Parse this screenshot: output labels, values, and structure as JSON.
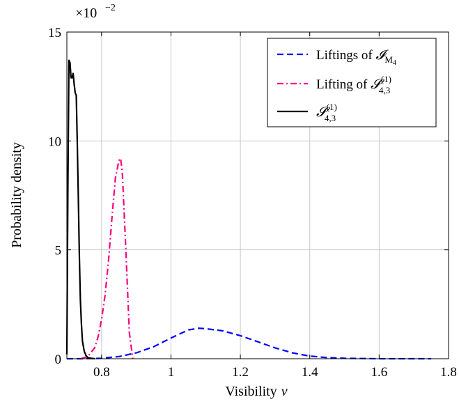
{
  "chart_data": {
    "type": "line",
    "xlabel": "Visibility",
    "xlabel_var": "v",
    "ylabel": "Probability density",
    "y_multiplier": "×10",
    "y_multiplier_exp": "−2",
    "xlim": [
      0.7,
      1.8
    ],
    "ylim": [
      0,
      15
    ],
    "x_ticks": [
      0.8,
      1,
      1.2,
      1.4,
      1.6,
      1.8
    ],
    "x_tick_labels": [
      "0.8",
      "1",
      "1.2",
      "1.4",
      "1.6",
      "1.8"
    ],
    "y_ticks": [
      0,
      5,
      10,
      15
    ],
    "y_tick_labels": [
      "0",
      "5",
      "10",
      "15"
    ],
    "grid": true,
    "legend_position": "top-right",
    "series": [
      {
        "name": "Liftings of I_M4",
        "legend_text": "Liftings of",
        "legend_math": "𝓘",
        "legend_sub": "M",
        "legend_subsub": "4",
        "color": "#0000ff",
        "dash": "dashed",
        "x": [
          0.7,
          0.75,
          0.8,
          0.85,
          0.9,
          0.95,
          1.0,
          1.05,
          1.08,
          1.1,
          1.15,
          1.2,
          1.25,
          1.3,
          1.35,
          1.4,
          1.45,
          1.5,
          1.6,
          1.75
        ],
        "y": [
          0,
          0,
          0.02,
          0.1,
          0.27,
          0.55,
          0.95,
          1.32,
          1.4,
          1.38,
          1.28,
          1.06,
          0.78,
          0.5,
          0.27,
          0.12,
          0.05,
          0.02,
          0,
          0
        ]
      },
      {
        "name": "Lifting of S_{4,3}^(1)",
        "legend_text": "Lifting of",
        "legend_math": "𝓢",
        "legend_sub": "4,3",
        "legend_sup": "(1)",
        "color": "#ff0080",
        "dash": "dashdot",
        "x": [
          0.74,
          0.76,
          0.78,
          0.79,
          0.8,
          0.81,
          0.82,
          0.83,
          0.84,
          0.85,
          0.855,
          0.86,
          0.87,
          0.88,
          0.89
        ],
        "y": [
          0,
          0.1,
          0.5,
          1.0,
          1.8,
          2.9,
          4.5,
          6.5,
          8.3,
          9.1,
          9.2,
          8.5,
          5.0,
          1.2,
          0
        ]
      },
      {
        "name": "S_{4,3}^(1)",
        "legend_text": "",
        "legend_math": "𝓢",
        "legend_sub": "4,3",
        "legend_sup": "(1)",
        "color": "#000000",
        "dash": "solid",
        "x": [
          0.7,
          0.703,
          0.706,
          0.709,
          0.712,
          0.715,
          0.718,
          0.721,
          0.724,
          0.727,
          0.73,
          0.733,
          0.736,
          0.739,
          0.742,
          0.745,
          0.75,
          0.755,
          0.76,
          0.77,
          0.78
        ],
        "y": [
          0.2,
          8.0,
          13.7,
          13.6,
          12.9,
          12.9,
          13.1,
          12.6,
          12.2,
          12.1,
          10.0,
          7.5,
          4.8,
          2.7,
          1.6,
          0.8,
          0.35,
          0.15,
          0.05,
          0.02,
          0
        ]
      }
    ]
  }
}
